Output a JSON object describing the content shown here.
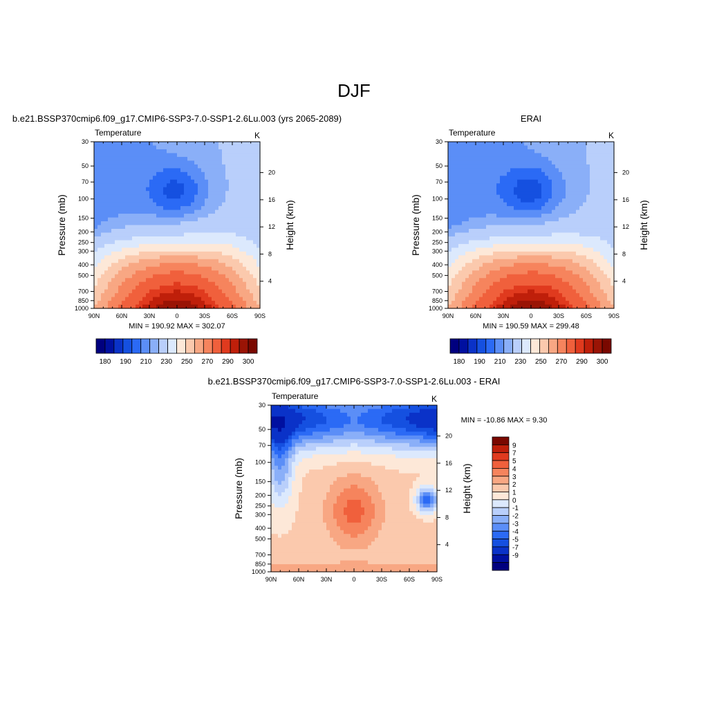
{
  "main_title": "DJF",
  "colors": {
    "abs_scale": [
      "#00007f",
      "#0010a0",
      "#0a32c8",
      "#1550e0",
      "#2b6af5",
      "#5b8ef7",
      "#8aaff8",
      "#b9cffb",
      "#dce9fd",
      "#fde8d8",
      "#fbc9ad",
      "#f8a783",
      "#f6845d",
      "#f0603c",
      "#e03a1e",
      "#bf1f0a",
      "#9a1405",
      "#7a0800"
    ],
    "diff_scale": [
      "#00007f",
      "#0010a0",
      "#0a32c8",
      "#1550e0",
      "#2b6af5",
      "#5b8ef7",
      "#8aaff8",
      "#b9cffb",
      "#dce9fd",
      "#fde8d8",
      "#fbc9ad",
      "#f8a783",
      "#f6845d",
      "#f0603c",
      "#e03a1e",
      "#bf1f0a",
      "#7a0800"
    ]
  },
  "chart_data": [
    {
      "type": "heatmap",
      "panel_title": "b.e21.BSSP370cmip6.f09_g17.CMIP6-SSP3-7.0-SSP1-2.6Lu.003 (yrs 2065-2089)",
      "left_label": "Temperature",
      "units": "K",
      "xlabel": "",
      "ylabel": "Pressure (mb)",
      "ylabel_right": "Height (km)",
      "x_ticks": [
        "90N",
        "60N",
        "30N",
        "0",
        "30S",
        "60S",
        "90S"
      ],
      "y_ticks": [
        "30",
        "50",
        "70",
        "100",
        "150",
        "200",
        "250",
        "300",
        "400",
        "500",
        "700",
        "850",
        "1000"
      ],
      "y_ticks_right": [
        "20",
        "16",
        "12",
        "8",
        "4"
      ],
      "stats": "MIN = 190.92  MAX = 302.07",
      "colorbar_labels": [
        "180",
        "190",
        "210",
        "230",
        "250",
        "270",
        "290",
        "300"
      ],
      "min": 190.92,
      "max": 302.07,
      "legend_position": "bottom"
    },
    {
      "type": "heatmap",
      "panel_title": "ERAI",
      "left_label": "Temperature",
      "units": "K",
      "xlabel": "",
      "ylabel": "Pressure (mb)",
      "ylabel_right": "Height (km)",
      "x_ticks": [
        "90N",
        "60N",
        "30N",
        "0",
        "30S",
        "60S",
        "90S"
      ],
      "y_ticks": [
        "30",
        "50",
        "70",
        "100",
        "150",
        "200",
        "250",
        "300",
        "400",
        "500",
        "700",
        "850",
        "1000"
      ],
      "y_ticks_right": [
        "20",
        "16",
        "12",
        "8",
        "4"
      ],
      "stats": "MIN = 190.59  MAX = 299.48",
      "colorbar_labels": [
        "180",
        "190",
        "210",
        "230",
        "250",
        "270",
        "290",
        "300"
      ],
      "min": 190.59,
      "max": 299.48,
      "legend_position": "bottom"
    },
    {
      "type": "heatmap",
      "panel_title": "b.e21.BSSP370cmip6.f09_g17.CMIP6-SSP3-7.0-SSP1-2.6Lu.003 - ERAI",
      "left_label": "Temperature",
      "units": "K",
      "xlabel": "",
      "ylabel": "Pressure (mb)",
      "ylabel_right": "Height (km)",
      "x_ticks": [
        "90N",
        "60N",
        "30N",
        "0",
        "30S",
        "60S",
        "90S"
      ],
      "y_ticks": [
        "30",
        "50",
        "70",
        "100",
        "150",
        "200",
        "250",
        "300",
        "400",
        "500",
        "700",
        "850",
        "1000"
      ],
      "y_ticks_right": [
        "20",
        "16",
        "12",
        "8",
        "4"
      ],
      "stats": "MIN = -10.86  MAX =   9.30",
      "colorbar_labels": [
        "9",
        "7",
        "5",
        "4",
        "3",
        "2",
        "1",
        "0",
        "-1",
        "-2",
        "-3",
        "-4",
        "-5",
        "-7",
        "-9"
      ],
      "min": -10.86,
      "max": 9.3,
      "legend_position": "right"
    }
  ]
}
